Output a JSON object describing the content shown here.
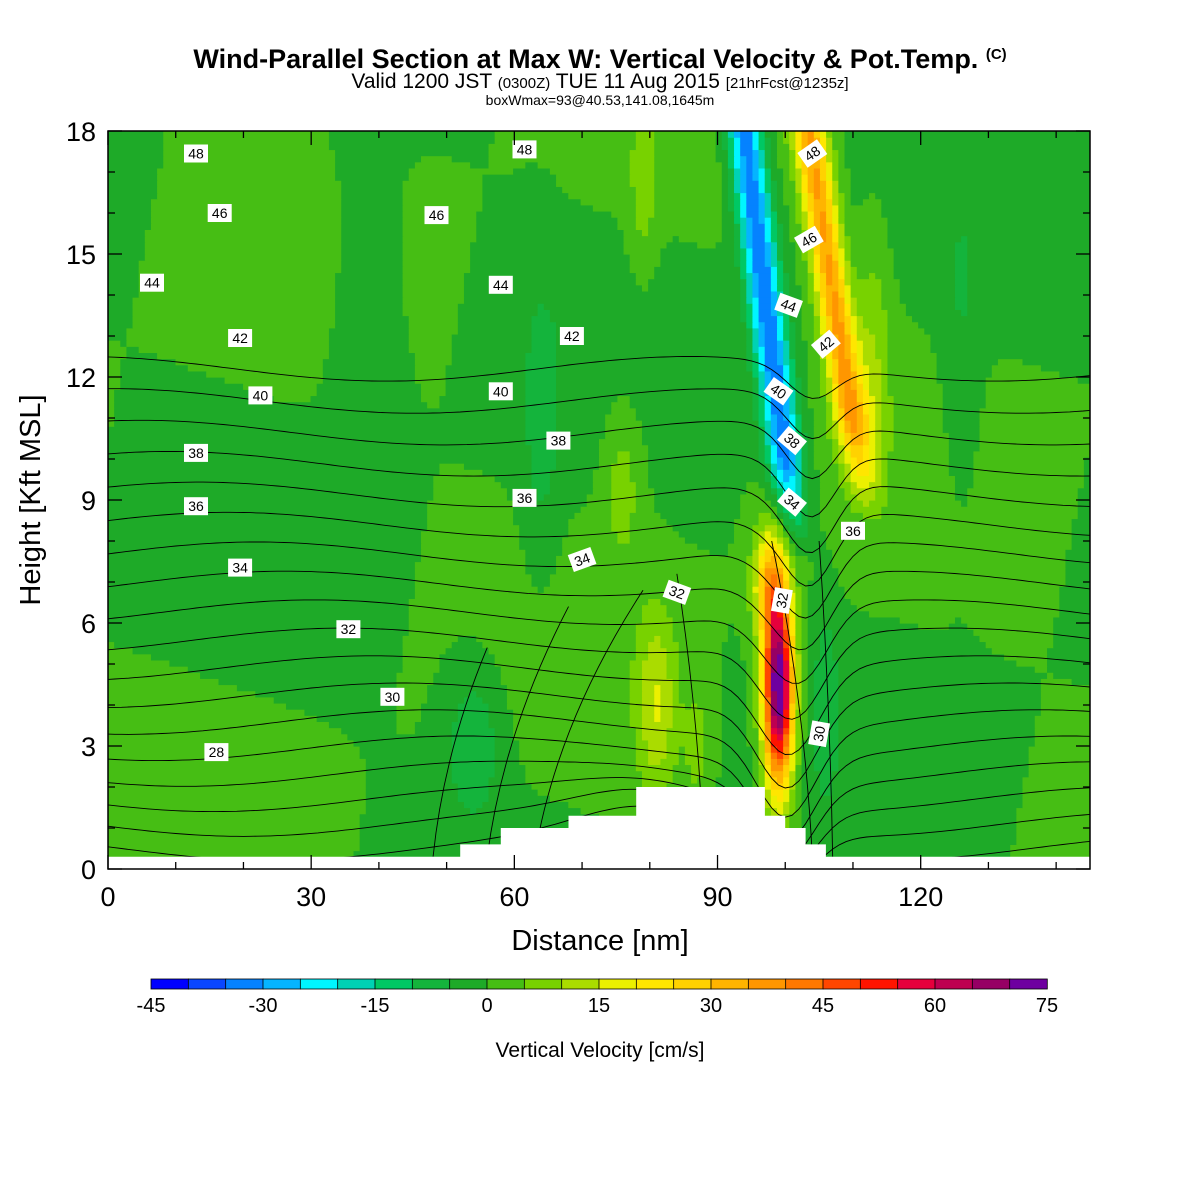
{
  "header": {
    "title_main": "Wind-Parallel Section at Max W: Vertical Velocity & Pot.Temp.",
    "title_mark": "(C)",
    "valid_a": "Valid 1200 JST",
    "valid_b": "(0300Z)",
    "valid_c": "TUE 11 Aug 2015",
    "valid_d": "[21hrFcst@1235z]",
    "box_info": "boxWmax=93@40.53,141.08,1645m"
  },
  "chart_data": {
    "type": "heatmap",
    "title": "Wind-Parallel Section at Max W: Vertical Velocity & Pot.Temp.",
    "xlabel": "Distance [nm]",
    "ylabel": "Height [Kft MSL]",
    "xlim": [
      0,
      145
    ],
    "ylim": [
      0,
      18
    ],
    "x_ticks": [
      0,
      30,
      60,
      90,
      120
    ],
    "y_ticks": [
      0,
      3,
      6,
      9,
      12,
      15,
      18
    ],
    "grid": false,
    "colorbar": {
      "title": "Vertical Velocity [cm/s]",
      "placement": "bottom",
      "levels": [
        -45,
        -40,
        -35,
        -30,
        -25,
        -20,
        -15,
        -10,
        -5,
        0,
        5,
        10,
        15,
        20,
        25,
        30,
        35,
        40,
        45,
        50,
        55,
        60,
        65,
        70,
        75
      ],
      "tick_values": [
        -45,
        -30,
        -15,
        0,
        15,
        30,
        45,
        60,
        75
      ],
      "colors": [
        "#0000ff",
        "#0a46ff",
        "#0582ff",
        "#05b4ff",
        "#00f5ff",
        "#00d2b4",
        "#00c864",
        "#14b43c",
        "#1eaa28",
        "#46be14",
        "#78d200",
        "#aadc00",
        "#ebf000",
        "#ffe600",
        "#ffd200",
        "#ffb400",
        "#ff9600",
        "#ff7800",
        "#ff4600",
        "#ff1400",
        "#e6003c",
        "#be0050",
        "#960064",
        "#6e00a0"
      ]
    },
    "contours": {
      "field": "Potential Temperature",
      "levels": [
        28,
        29,
        30,
        31,
        32,
        33,
        34,
        35,
        36,
        37,
        38,
        39,
        40,
        41,
        42,
        43,
        44,
        45,
        46,
        47,
        48
      ],
      "labels": [
        {
          "text": "48",
          "x": 13,
          "y": 17.45,
          "angle": 0
        },
        {
          "text": "48",
          "x": 61.5,
          "y": 17.55,
          "angle": 0
        },
        {
          "text": "48",
          "x": 104,
          "y": 17.45,
          "angle": -35
        },
        {
          "text": "46",
          "x": 16.5,
          "y": 16.0,
          "angle": 0
        },
        {
          "text": "46",
          "x": 48.5,
          "y": 15.95,
          "angle": 0
        },
        {
          "text": "46",
          "x": 103.5,
          "y": 15.35,
          "angle": -30
        },
        {
          "text": "44",
          "x": 6.5,
          "y": 14.3,
          "angle": 0
        },
        {
          "text": "44",
          "x": 58,
          "y": 14.25,
          "angle": 0
        },
        {
          "text": "44",
          "x": 100.5,
          "y": 13.75,
          "angle": 20
        },
        {
          "text": "42",
          "x": 19.5,
          "y": 12.95,
          "angle": 0
        },
        {
          "text": "42",
          "x": 68.5,
          "y": 13.0,
          "angle": 0
        },
        {
          "text": "42",
          "x": 106,
          "y": 12.8,
          "angle": -40
        },
        {
          "text": "40",
          "x": 22.5,
          "y": 11.55,
          "angle": 0
        },
        {
          "text": "40",
          "x": 58,
          "y": 11.65,
          "angle": 0
        },
        {
          "text": "40",
          "x": 99,
          "y": 11.65,
          "angle": 35
        },
        {
          "text": "38",
          "x": 13,
          "y": 10.15,
          "angle": 0
        },
        {
          "text": "38",
          "x": 66.5,
          "y": 10.45,
          "angle": 0
        },
        {
          "text": "38",
          "x": 101,
          "y": 10.45,
          "angle": 40
        },
        {
          "text": "36",
          "x": 13,
          "y": 8.85,
          "angle": 0
        },
        {
          "text": "36",
          "x": 61.5,
          "y": 9.05,
          "angle": 0
        },
        {
          "text": "36",
          "x": 110,
          "y": 8.25,
          "angle": 0
        },
        {
          "text": "34",
          "x": 19.5,
          "y": 7.35,
          "angle": 0
        },
        {
          "text": "34",
          "x": 70,
          "y": 7.55,
          "angle": -20
        },
        {
          "text": "34",
          "x": 101,
          "y": 8.95,
          "angle": 40
        },
        {
          "text": "32",
          "x": 35.5,
          "y": 5.85,
          "angle": 0
        },
        {
          "text": "32",
          "x": 84,
          "y": 6.75,
          "angle": 20
        },
        {
          "text": "32",
          "x": 99.5,
          "y": 6.55,
          "angle": -80
        },
        {
          "text": "30",
          "x": 42,
          "y": 4.2,
          "angle": 0
        },
        {
          "text": "30",
          "x": 105,
          "y": 3.3,
          "angle": -80
        },
        {
          "text": "28",
          "x": 16,
          "y": 2.85,
          "angle": 0
        }
      ]
    },
    "features": [
      {
        "kind": "updraft_max",
        "x": 99,
        "y": 4.5,
        "value": 75
      },
      {
        "kind": "downdraft_band",
        "x_range": [
          92,
          110
        ],
        "y_range": [
          8,
          18
        ],
        "value": -30
      },
      {
        "kind": "updraft_band",
        "x_range": [
          100,
          115
        ],
        "y_range": [
          9,
          18
        ],
        "value": 40
      },
      {
        "kind": "terrain_max",
        "x": 90,
        "y": 2.0
      }
    ]
  }
}
